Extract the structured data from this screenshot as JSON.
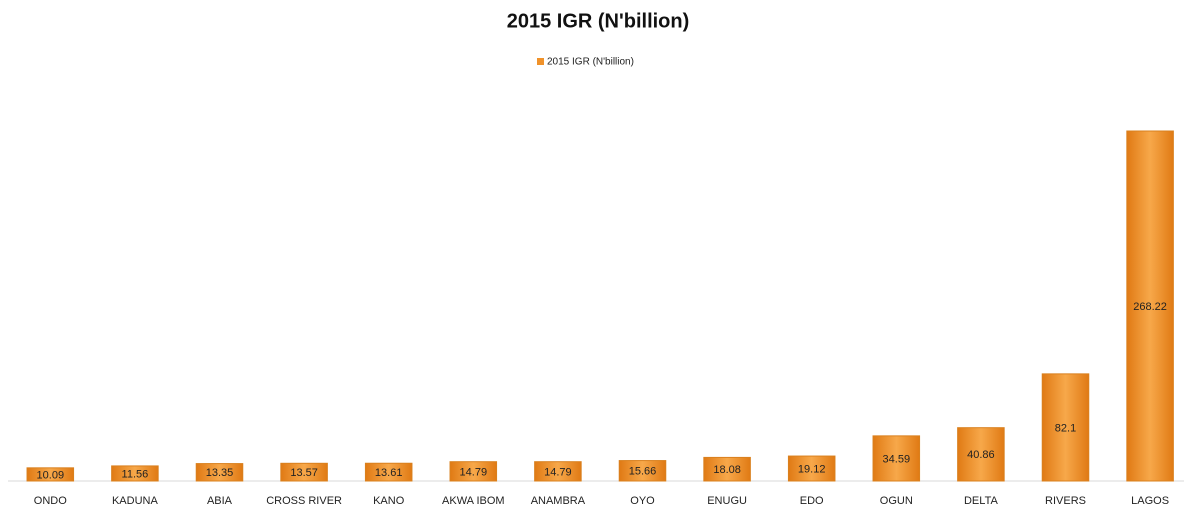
{
  "chart_data": {
    "type": "bar",
    "title": "2015 IGR (N'billion)",
    "categories": [
      "ONDO",
      "KADUNA",
      "ABIA",
      "CROSS RIVER",
      "KANO",
      "AKWA IBOM",
      "ANAMBRA",
      "OYO",
      "ENUGU",
      "EDO",
      "OGUN",
      "DELTA",
      "RIVERS",
      "LAGOS"
    ],
    "series": [
      {
        "name": "2015 IGR (N'billion)",
        "color": "#f0922a",
        "values": [
          10.09,
          11.56,
          13.35,
          13.57,
          13.61,
          14.79,
          14.79,
          15.66,
          18.08,
          19.12,
          34.59,
          40.86,
          82.1,
          268.22
        ]
      }
    ],
    "legend": "top"
  }
}
